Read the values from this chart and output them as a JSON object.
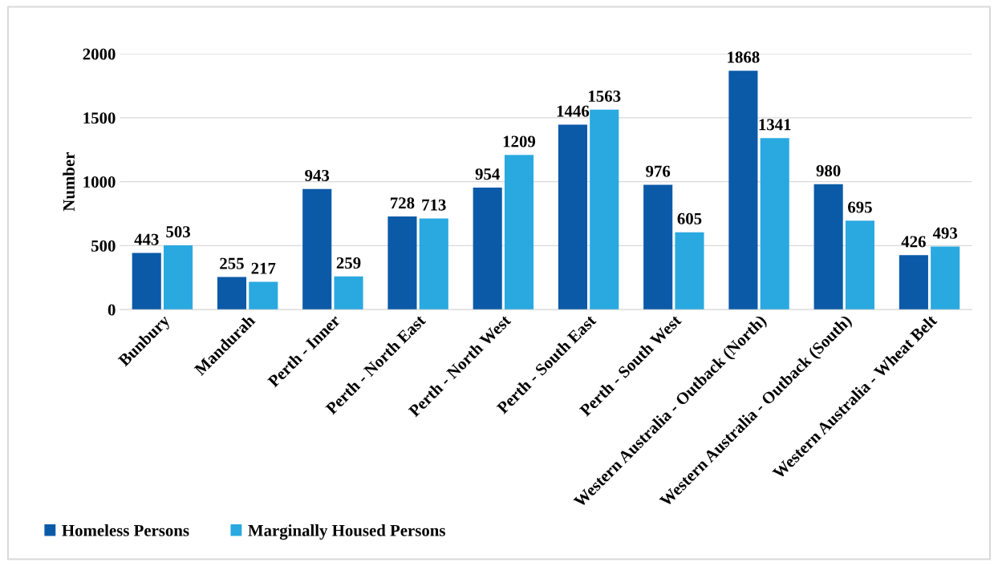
{
  "chart_data": {
    "type": "bar",
    "ylabel": "Number",
    "categories": [
      "Bunbury",
      "Mandurah",
      "Perth - Inner",
      "Perth - North East",
      "Perth - North West",
      "Perth - South East",
      "Perth - South West",
      "Western Australia - Outback (North)",
      "Western Australia - Outback (South)",
      "Western Australia - Wheat Belt"
    ],
    "series": [
      {
        "name": "Homeless Persons",
        "color": "#0b5aa8",
        "values": [
          443,
          255,
          943,
          728,
          954,
          1446,
          976,
          1868,
          980,
          426
        ]
      },
      {
        "name": "Marginally Housed Persons",
        "color": "#2aa9e0",
        "values": [
          503,
          217,
          259,
          713,
          1209,
          1563,
          605,
          1341,
          695,
          493
        ]
      }
    ],
    "ylim": [
      0,
      2000
    ],
    "yticks": [
      0,
      500,
      1000,
      1500,
      2000
    ],
    "grid": "y",
    "legend": "bottom left",
    "data_labels": true
  }
}
